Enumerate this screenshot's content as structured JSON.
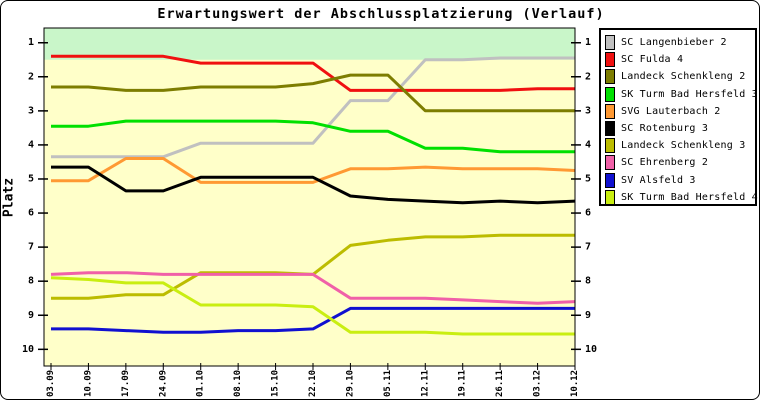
{
  "chart_data": {
    "type": "line",
    "title": "Erwartungswert der Abschlussplatzierung (Verlauf)",
    "ylabel": "Platz",
    "x_labels": [
      "03.09",
      "10.09",
      "17.09",
      "24.09",
      "01.10",
      "08.10",
      "15.10",
      "22.10",
      "29.10",
      "05.11",
      "12.11",
      "19.11",
      "26.11",
      "03.12",
      "10.12"
    ],
    "y_ticks": [
      1,
      2,
      3,
      4,
      5,
      6,
      7,
      8,
      9,
      10
    ],
    "y_axis_inverted": true,
    "ylim": [
      1,
      10
    ],
    "grid": false,
    "legend_position": "right",
    "plot_bg_color": "#ffffc9",
    "highlight_band": {
      "from_top": true,
      "to_platz": 1.5,
      "color": "#c9f6c9"
    },
    "series": [
      {
        "name": "SC Langenbieber 2",
        "color": "#c0c0c0",
        "values": [
          4.35,
          4.35,
          4.35,
          4.35,
          3.95,
          3.95,
          3.95,
          3.95,
          2.7,
          2.7,
          1.5,
          1.5,
          1.45,
          1.45,
          1.45
        ]
      },
      {
        "name": "SC Fulda 4",
        "color": "#f01010",
        "values": [
          1.4,
          1.4,
          1.4,
          1.4,
          1.6,
          1.6,
          1.6,
          1.6,
          2.4,
          2.4,
          2.4,
          2.4,
          2.4,
          2.35,
          2.35
        ]
      },
      {
        "name": "Landeck Schenkleng 2",
        "color": "#7d7d00",
        "values": [
          2.3,
          2.3,
          2.4,
          2.4,
          2.3,
          2.3,
          2.3,
          2.2,
          1.95,
          1.95,
          3.0,
          3.0,
          3.0,
          3.0,
          3.0
        ]
      },
      {
        "name": "SK Turm Bad Hersfeld 3",
        "color": "#00e000",
        "values": [
          3.45,
          3.45,
          3.3,
          3.3,
          3.3,
          3.3,
          3.3,
          3.35,
          3.6,
          3.6,
          4.1,
          4.1,
          4.2,
          4.2,
          4.2
        ]
      },
      {
        "name": "SVG Lauterbach 2",
        "color": "#ff9933",
        "values": [
          5.05,
          5.05,
          4.4,
          4.4,
          5.1,
          5.1,
          5.1,
          5.1,
          4.7,
          4.7,
          4.65,
          4.7,
          4.7,
          4.7,
          4.75
        ]
      },
      {
        "name": "SC Rotenburg 3",
        "color": "#000000",
        "values": [
          4.65,
          4.65,
          5.35,
          5.35,
          4.95,
          4.95,
          4.95,
          4.95,
          5.5,
          5.6,
          5.65,
          5.7,
          5.65,
          5.7,
          5.65
        ]
      },
      {
        "name": "Landeck Schenkleng 3",
        "color": "#bcbc00",
        "values": [
          8.5,
          8.5,
          8.4,
          8.4,
          7.75,
          7.75,
          7.75,
          7.8,
          6.95,
          6.8,
          6.7,
          6.7,
          6.65,
          6.65,
          6.65
        ]
      },
      {
        "name": "SC Ehrenberg 2",
        "color": "#f060a8",
        "values": [
          7.8,
          7.75,
          7.75,
          7.8,
          7.8,
          7.8,
          7.8,
          7.8,
          8.5,
          8.5,
          8.5,
          8.55,
          8.6,
          8.65,
          8.6
        ]
      },
      {
        "name": "SV Alsfeld 3",
        "color": "#1010d0",
        "values": [
          9.4,
          9.4,
          9.45,
          9.5,
          9.5,
          9.45,
          9.45,
          9.4,
          8.8,
          8.8,
          8.8,
          8.8,
          8.8,
          8.8,
          8.8
        ]
      },
      {
        "name": "SK Turm Bad Hersfeld 4",
        "color": "#c9ee11",
        "values": [
          7.9,
          7.95,
          8.05,
          8.05,
          8.7,
          8.7,
          8.7,
          8.75,
          9.5,
          9.5,
          9.5,
          9.55,
          9.55,
          9.55,
          9.55
        ]
      }
    ]
  }
}
